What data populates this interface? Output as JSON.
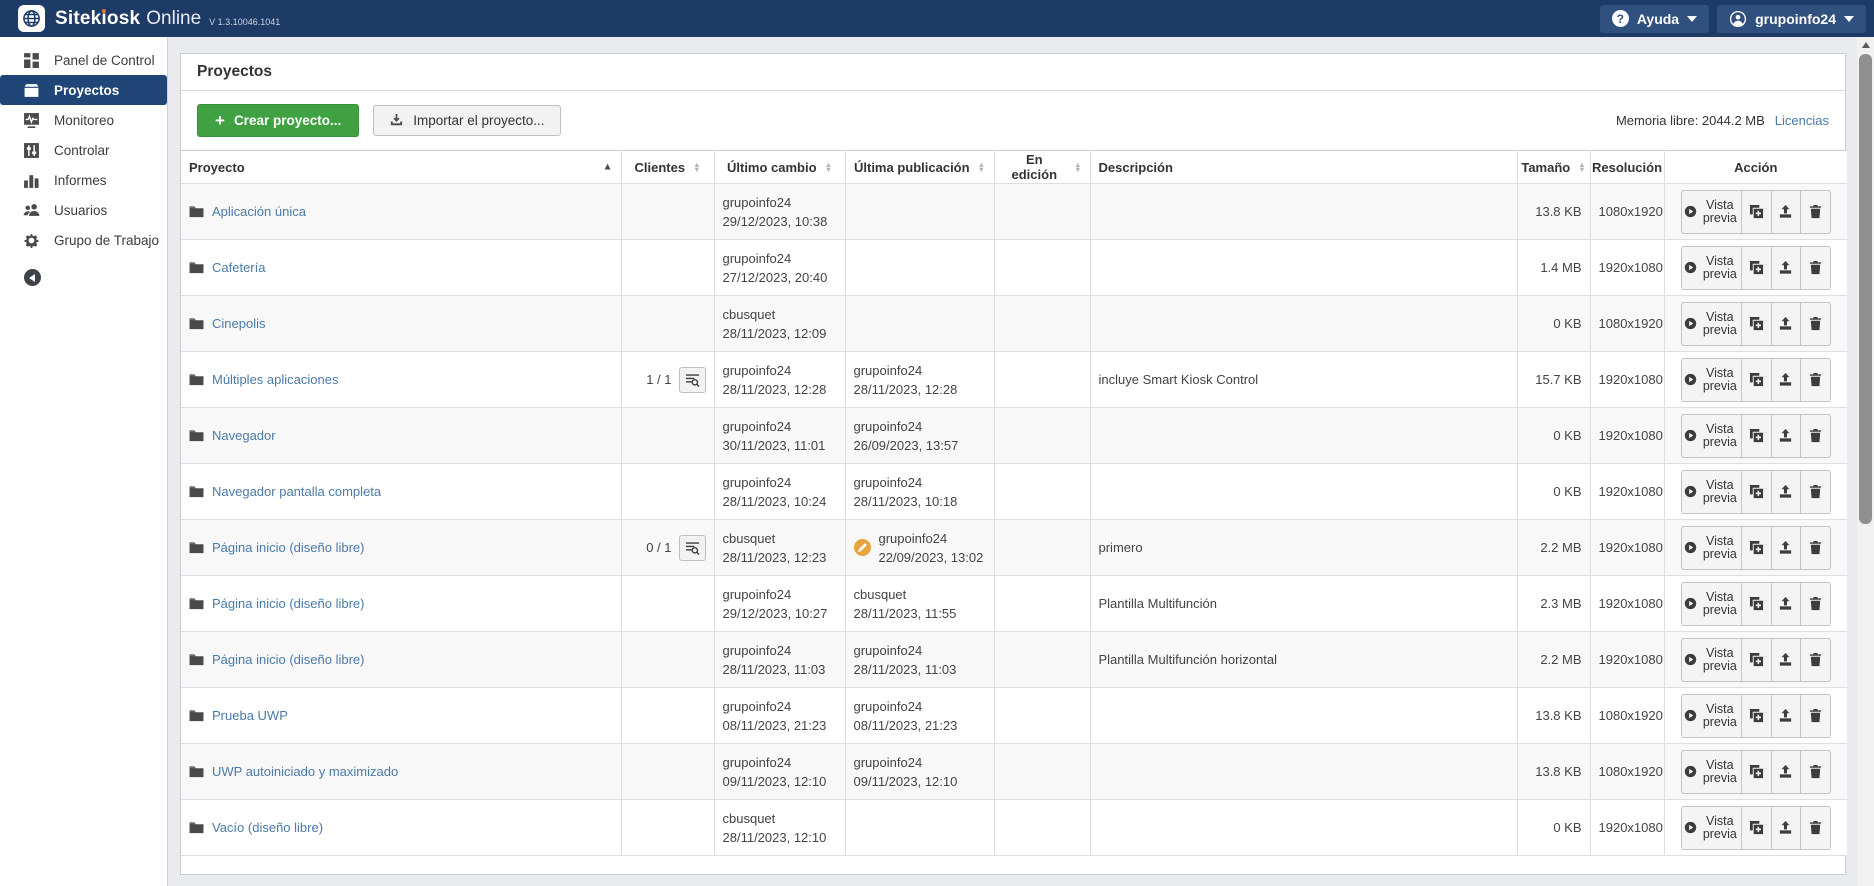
{
  "colors": {
    "topbar": "#1e3a66",
    "topbar-btn": "#30517f",
    "active-nav": "#1f4677",
    "link": "#4a7aa8",
    "green": "#3fa142",
    "orange": "#e8a33d"
  },
  "topbar": {
    "brand_prefix": "Sitek",
    "brand_mid": "osk",
    "brand_suffix": "Online",
    "version": "V 1.3.10046.1041",
    "help_label": "Ayuda",
    "user_label": "grupoinfo24"
  },
  "sidebar": {
    "items": [
      {
        "label": "Panel de Control",
        "icon": "dashboard-icon",
        "slug": "panel-de-control",
        "active": false
      },
      {
        "label": "Proyectos",
        "icon": "projects-icon",
        "slug": "proyectos",
        "active": true
      },
      {
        "label": "Monitoreo",
        "icon": "monitoring-icon",
        "slug": "monitoreo",
        "active": false
      },
      {
        "label": "Controlar",
        "icon": "control-icon",
        "slug": "controlar",
        "active": false
      },
      {
        "label": "Informes",
        "icon": "reports-icon",
        "slug": "informes",
        "active": false
      },
      {
        "label": "Usuarios",
        "icon": "users-icon",
        "slug": "usuarios",
        "active": false
      },
      {
        "label": "Grupo de Trabajo",
        "icon": "workgroup-icon",
        "slug": "grupo-de-trabajo",
        "active": false
      }
    ]
  },
  "page": {
    "title": "Proyectos",
    "create_button": "Crear proyecto...",
    "import_button": "Importar el proyecto...",
    "memory_label": "Memoria libre: 2044.2 MB",
    "licenses_link": "Licencias"
  },
  "table": {
    "action_button_label": "Vista previa",
    "columns": [
      {
        "label": "Proyecto",
        "sort": "active-asc",
        "align": "left"
      },
      {
        "label": "Clientes",
        "sort": "both",
        "align": "center"
      },
      {
        "label": "Último cambio",
        "sort": "both",
        "align": "center"
      },
      {
        "label": "Última publicación",
        "sort": "both",
        "align": "center"
      },
      {
        "label": "En edición",
        "sort": "both",
        "align": "center"
      },
      {
        "label": "Descripción",
        "sort": null,
        "align": "left"
      },
      {
        "label": "Tamaño",
        "sort": "both",
        "align": "center"
      },
      {
        "label": "Resolución",
        "sort": null,
        "align": "center"
      },
      {
        "label": "Acción",
        "sort": null,
        "align": "center"
      }
    ],
    "rows": [
      {
        "name": "Aplicación única",
        "clients": "",
        "last_change_user": "grupoinfo24",
        "last_change_date": "29/12/2023, 10:38",
        "last_pub_user": "",
        "last_pub_date": "",
        "pub_flag": false,
        "editing": "",
        "description": "",
        "size": "13.8 KB",
        "resolution": "1080x1920"
      },
      {
        "name": "Cafetería",
        "clients": "",
        "last_change_user": "grupoinfo24",
        "last_change_date": "27/12/2023, 20:40",
        "last_pub_user": "",
        "last_pub_date": "",
        "pub_flag": false,
        "editing": "",
        "description": "",
        "size": "1.4 MB",
        "resolution": "1920x1080"
      },
      {
        "name": "Cinepolis",
        "clients": "",
        "last_change_user": "cbusquet",
        "last_change_date": "28/11/2023, 12:09",
        "last_pub_user": "",
        "last_pub_date": "",
        "pub_flag": false,
        "editing": "",
        "description": "",
        "size": "0 KB",
        "resolution": "1080x1920"
      },
      {
        "name": "Múltiples aplicaciones",
        "clients": "1 / 1",
        "last_change_user": "grupoinfo24",
        "last_change_date": "28/11/2023, 12:28",
        "last_pub_user": "grupoinfo24",
        "last_pub_date": "28/11/2023, 12:28",
        "pub_flag": false,
        "editing": "",
        "description": "incluye Smart Kiosk Control",
        "size": "15.7 KB",
        "resolution": "1920x1080"
      },
      {
        "name": "Navegador",
        "clients": "",
        "last_change_user": "grupoinfo24",
        "last_change_date": "30/11/2023, 11:01",
        "last_pub_user": "grupoinfo24",
        "last_pub_date": "26/09/2023, 13:57",
        "pub_flag": false,
        "editing": "",
        "description": "",
        "size": "0 KB",
        "resolution": "1920x1080"
      },
      {
        "name": "Navegador pantalla completa",
        "clients": "",
        "last_change_user": "grupoinfo24",
        "last_change_date": "28/11/2023, 10:24",
        "last_pub_user": "grupoinfo24",
        "last_pub_date": "28/11/2023, 10:18",
        "pub_flag": false,
        "editing": "",
        "description": "",
        "size": "0 KB",
        "resolution": "1920x1080"
      },
      {
        "name": "Página inicio (diseño libre)",
        "clients": "0 / 1",
        "last_change_user": "cbusquet",
        "last_change_date": "28/11/2023, 12:23",
        "last_pub_user": "grupoinfo24",
        "last_pub_date": "22/09/2023, 13:02",
        "pub_flag": true,
        "editing": "",
        "description": "primero",
        "size": "2.2 MB",
        "resolution": "1920x1080"
      },
      {
        "name": "Página inicio (diseño libre)",
        "clients": "",
        "last_change_user": "grupoinfo24",
        "last_change_date": "29/12/2023, 10:27",
        "last_pub_user": "cbusquet",
        "last_pub_date": "28/11/2023, 11:55",
        "pub_flag": false,
        "editing": "",
        "description": "Plantilla Multifunción",
        "size": "2.3 MB",
        "resolution": "1920x1080"
      },
      {
        "name": "Página inicio (diseño libre)",
        "clients": "",
        "last_change_user": "grupoinfo24",
        "last_change_date": "28/11/2023, 11:03",
        "last_pub_user": "grupoinfo24",
        "last_pub_date": "28/11/2023, 11:03",
        "pub_flag": false,
        "editing": "",
        "description": "Plantilla Multifunción horizontal",
        "size": "2.2 MB",
        "resolution": "1920x1080"
      },
      {
        "name": "Prueba UWP",
        "clients": "",
        "last_change_user": "grupoinfo24",
        "last_change_date": "08/11/2023, 21:23",
        "last_pub_user": "grupoinfo24",
        "last_pub_date": "08/11/2023, 21:23",
        "pub_flag": false,
        "editing": "",
        "description": "",
        "size": "13.8 KB",
        "resolution": "1080x1920"
      },
      {
        "name": "UWP autoiniciado y maximizado",
        "clients": "",
        "last_change_user": "grupoinfo24",
        "last_change_date": "09/11/2023, 12:10",
        "last_pub_user": "grupoinfo24",
        "last_pub_date": "09/11/2023, 12:10",
        "pub_flag": false,
        "editing": "",
        "description": "",
        "size": "13.8 KB",
        "resolution": "1080x1920"
      },
      {
        "name": "Vacío (diseño libre)",
        "clients": "",
        "last_change_user": "cbusquet",
        "last_change_date": "28/11/2023, 12:10",
        "last_pub_user": "",
        "last_pub_date": "",
        "pub_flag": false,
        "editing": "",
        "description": "",
        "size": "0 KB",
        "resolution": "1920x1080"
      }
    ]
  }
}
